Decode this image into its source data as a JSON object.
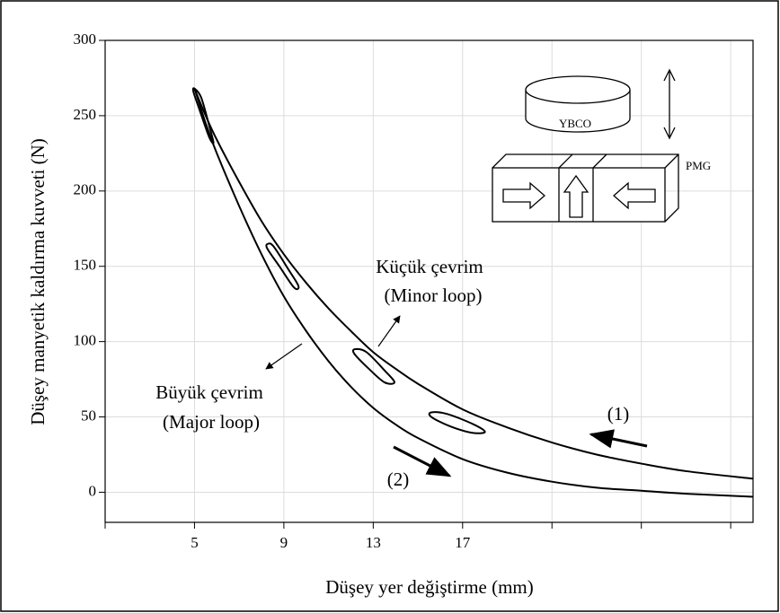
{
  "chart_data": {
    "type": "line",
    "x_label": "Düşey yer değiştirme (mm)",
    "y_label": "Düşey manyetik kaldırma kuvveti (N)",
    "xlim": [
      1,
      30
    ],
    "xticks": [
      5,
      9,
      13,
      17
    ],
    "xminor_ticks": [
      1,
      21,
      25,
      29
    ],
    "ylim": [
      -20,
      300
    ],
    "yticks": [
      0,
      50,
      100,
      150,
      200,
      250,
      300
    ],
    "grid": true,
    "series": [
      {
        "color": "#000000",
        "closed": false,
        "x": [
          5,
          5.5,
          6,
          7,
          8,
          9,
          10,
          11,
          12,
          13,
          14,
          15,
          17,
          19,
          21,
          23,
          25,
          27,
          30
        ],
        "values": [
          268,
          250,
          234,
          206,
          180,
          158,
          139,
          122,
          107,
          93,
          82,
          72,
          55,
          43,
          33,
          25,
          19,
          14,
          9
        ]
      },
      {
        "color": "#000000",
        "closed": false,
        "x": [
          5,
          5.5,
          6,
          7,
          8,
          9,
          10,
          11,
          12,
          13,
          14,
          15,
          17,
          19,
          21,
          23,
          25,
          27,
          30
        ],
        "values": [
          268,
          245,
          225,
          190,
          158,
          130,
          107,
          87,
          70,
          56,
          45,
          36,
          22,
          13,
          7,
          3,
          1,
          -1,
          -3
        ]
      },
      {
        "color": "#000000",
        "closed": true,
        "x": [
          5,
          5.3,
          5.7,
          5.85,
          5.65,
          5.2,
          4.95
        ],
        "values": [
          268,
          262,
          241,
          232,
          236,
          255,
          266
        ]
      },
      {
        "color": "#000000",
        "closed": true,
        "x": [
          8.3,
          8.55,
          9.2,
          9.65,
          9.45,
          8.8,
          8.25
        ],
        "values": [
          165,
          163,
          148,
          137,
          136,
          150,
          162
        ]
      },
      {
        "color": "#000000",
        "closed": true,
        "x": [
          12.2,
          12.7,
          13.5,
          13.95,
          13.5,
          12.8,
          12.15
        ],
        "values": [
          95,
          93,
          81,
          73,
          73,
          82,
          92
        ]
      },
      {
        "color": "#000000",
        "closed": true,
        "x": [
          15.6,
          16.3,
          17.5,
          18,
          17.4,
          16.4,
          15.6
        ],
        "values": [
          53,
          52,
          45,
          40,
          39.5,
          44,
          50
        ]
      }
    ],
    "annotations": {
      "minor": "Küçük çevrim",
      "minor_en": "(Minor loop)",
      "major": "Büyük çevrim",
      "major_en": "(Major loop)",
      "one": "(1)",
      "two": "(2)",
      "ybco": "YBCO",
      "pmg": "PMG"
    }
  }
}
